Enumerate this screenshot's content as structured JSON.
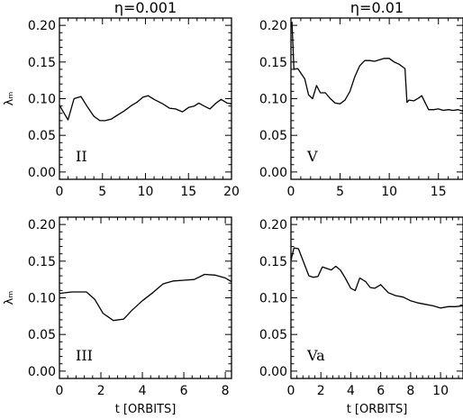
{
  "chart_data": [
    {
      "type": "line",
      "panel_label": "II",
      "title": "η=0.001",
      "xlabel": "",
      "ylabel": "λₘ",
      "xlim": [
        0,
        20
      ],
      "ylim": [
        -0.01,
        0.21
      ],
      "xticks": [
        0,
        5,
        10,
        15,
        20
      ],
      "yticks": [
        0.0,
        0.05,
        0.1,
        0.15,
        0.2
      ],
      "xtick_labels": [
        "0",
        "5",
        "10",
        "15",
        "20"
      ],
      "ytick_labels": [
        "0.00",
        "0.05",
        "0.10",
        "0.15",
        "0.20"
      ],
      "series": [
        {
          "x": [
            0,
            1.0,
            1.7,
            2.5,
            3.3,
            4.0,
            4.7,
            5.3,
            6.0,
            6.8,
            7.5,
            8.3,
            9.0,
            9.7,
            10.3,
            11.0,
            12.0,
            12.8,
            13.5,
            14.3,
            15.0,
            15.7,
            16.2,
            16.8,
            17.5,
            18.2,
            18.8,
            19.5,
            20.0
          ],
          "y": [
            0.091,
            0.071,
            0.1,
            0.103,
            0.088,
            0.076,
            0.07,
            0.07,
            0.072,
            0.078,
            0.083,
            0.09,
            0.095,
            0.102,
            0.104,
            0.099,
            0.093,
            0.087,
            0.086,
            0.082,
            0.088,
            0.09,
            0.094,
            0.09,
            0.086,
            0.094,
            0.099,
            0.094,
            0.093
          ]
        }
      ]
    },
    {
      "type": "line",
      "panel_label": "V",
      "title": "η=0.01",
      "xlabel": "",
      "ylabel": "",
      "xlim": [
        0,
        17.5
      ],
      "ylim": [
        -0.01,
        0.21
      ],
      "xticks": [
        0,
        5,
        10,
        15
      ],
      "yticks": [
        0.0,
        0.05,
        0.1,
        0.15,
        0.2
      ],
      "xtick_labels": [
        "0",
        "5",
        "10",
        "15"
      ],
      "ytick_labels": [
        "0.00",
        "0.05",
        "0.10",
        "0.15",
        "0.20"
      ],
      "series": [
        {
          "x": [
            0.1,
            0.3,
            0.7,
            1.0,
            1.4,
            1.8,
            2.2,
            2.6,
            3.0,
            3.5,
            4.0,
            4.5,
            5.0,
            5.5,
            6.0,
            6.5,
            7.0,
            7.5,
            8.0,
            8.5,
            9.0,
            9.5,
            10.0,
            10.5,
            11.0,
            11.6,
            11.8,
            12.0,
            12.5,
            13.0,
            13.3,
            14.0,
            14.5,
            15.0,
            15.5,
            16.0,
            16.5,
            17.0,
            17.5
          ],
          "y": [
            0.205,
            0.14,
            0.141,
            0.135,
            0.127,
            0.105,
            0.1,
            0.118,
            0.108,
            0.108,
            0.1,
            0.094,
            0.093,
            0.098,
            0.11,
            0.13,
            0.145,
            0.152,
            0.152,
            0.151,
            0.153,
            0.155,
            0.155,
            0.15,
            0.147,
            0.141,
            0.095,
            0.098,
            0.097,
            0.101,
            0.104,
            0.085,
            0.085,
            0.086,
            0.084,
            0.085,
            0.084,
            0.085,
            0.083
          ]
        }
      ]
    },
    {
      "type": "line",
      "panel_label": "III",
      "title": "",
      "xlabel": "t [ORBITS]",
      "ylabel": "λₘ",
      "xlim": [
        0,
        8.3
      ],
      "ylim": [
        -0.01,
        0.21
      ],
      "xticks": [
        0,
        2,
        4,
        6,
        8
      ],
      "yticks": [
        0.0,
        0.05,
        0.1,
        0.15,
        0.2
      ],
      "xtick_labels": [
        "0",
        "2",
        "4",
        "6",
        "8"
      ],
      "ytick_labels": [
        "0.00",
        "0.05",
        "0.10",
        "0.15",
        "0.20"
      ],
      "series": [
        {
          "x": [
            0,
            0.6,
            1.3,
            1.7,
            2.1,
            2.6,
            3.1,
            3.5,
            4.0,
            4.5,
            5.0,
            5.5,
            6.0,
            6.5,
            7.0,
            7.5,
            8.0,
            8.3
          ],
          "y": [
            0.106,
            0.108,
            0.108,
            0.098,
            0.079,
            0.069,
            0.071,
            0.083,
            0.096,
            0.107,
            0.119,
            0.123,
            0.124,
            0.125,
            0.132,
            0.131,
            0.127,
            0.122
          ]
        }
      ]
    },
    {
      "type": "line",
      "panel_label": "Va",
      "title": "",
      "xlabel": "t [ORBITS]",
      "ylabel": "",
      "xlim": [
        0,
        11.5
      ],
      "ylim": [
        -0.01,
        0.21
      ],
      "xticks": [
        0,
        2,
        4,
        6,
        8,
        10
      ],
      "yticks": [
        0.0,
        0.05,
        0.1,
        0.15,
        0.2
      ],
      "xtick_labels": [
        "0",
        "2",
        "4",
        "6",
        "8",
        "10"
      ],
      "ytick_labels": [
        "0.00",
        "0.05",
        "0.10",
        "0.15",
        "0.20"
      ],
      "series": [
        {
          "x": [
            0,
            0.2,
            0.5,
            0.8,
            1.2,
            1.5,
            1.8,
            2.1,
            2.4,
            2.7,
            3.0,
            3.3,
            3.6,
            4.0,
            4.3,
            4.6,
            5.0,
            5.3,
            5.6,
            6.0,
            6.5,
            7.0,
            7.5,
            8.0,
            8.5,
            9.0,
            9.5,
            10.0,
            10.5,
            11.0,
            11.5
          ],
          "y": [
            0.151,
            0.168,
            0.167,
            0.151,
            0.13,
            0.128,
            0.129,
            0.142,
            0.14,
            0.138,
            0.143,
            0.138,
            0.128,
            0.113,
            0.11,
            0.127,
            0.122,
            0.114,
            0.113,
            0.118,
            0.107,
            0.103,
            0.101,
            0.096,
            0.093,
            0.091,
            0.089,
            0.086,
            0.088,
            0.088,
            0.089
          ]
        }
      ]
    }
  ]
}
